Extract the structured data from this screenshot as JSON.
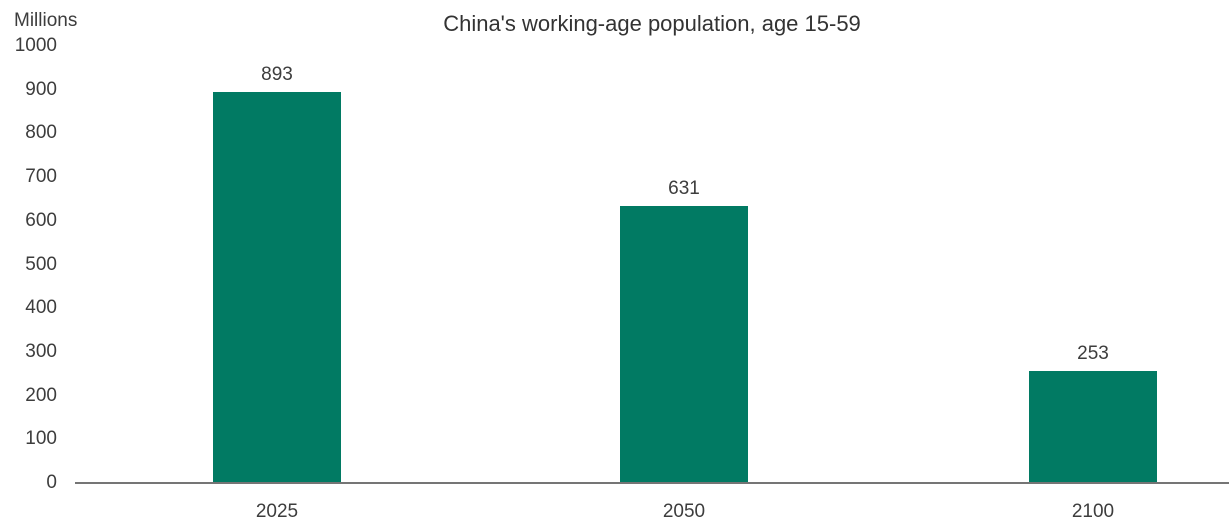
{
  "chart_data": {
    "type": "bar",
    "title": "China's working-age population, age 15-59",
    "ylabel": "Millions",
    "xlabel": "",
    "categories": [
      "2025",
      "2050",
      "2100"
    ],
    "values": [
      893,
      631,
      253
    ],
    "ylim": [
      0,
      1000
    ],
    "yticks": [
      0,
      100,
      200,
      300,
      400,
      500,
      600,
      700,
      800,
      900,
      1000
    ],
    "grid": false,
    "legend": false,
    "bar_color": "#017A63",
    "axis_line_color": "#757575",
    "label_color": "#3D3D3D",
    "title_color": "#333333"
  }
}
